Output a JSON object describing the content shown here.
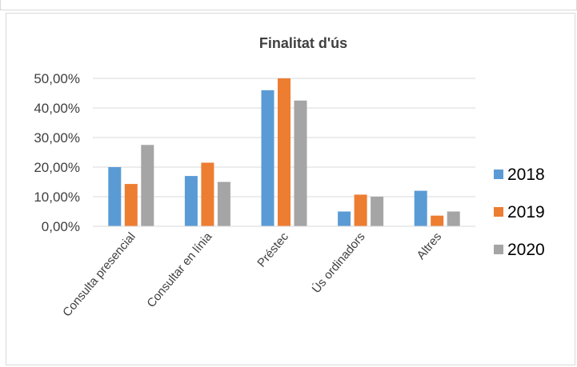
{
  "chart_data": {
    "type": "bar",
    "title": "Finalitat d'ús",
    "xlabel": "",
    "ylabel": "",
    "categories": [
      "Consulta presencial",
      "Consultar en línia",
      "Préstec",
      "Ús ordinadors",
      "Altres"
    ],
    "series": [
      {
        "name": "2018",
        "color": "#5b9bd5",
        "values": [
          20.0,
          17.0,
          46.0,
          5.0,
          12.0
        ]
      },
      {
        "name": "2019",
        "color": "#ed7d31",
        "values": [
          14.3,
          21.5,
          50.0,
          10.7,
          3.6
        ]
      },
      {
        "name": "2020",
        "color": "#a5a5a5",
        "values": [
          27.5,
          15.0,
          42.5,
          10.0,
          5.0
        ]
      }
    ],
    "ylim": [
      0,
      50
    ],
    "yticks": [
      "0,00%",
      "10,00%",
      "20,00%",
      "30,00%",
      "40,00%",
      "50,00%"
    ],
    "grid": true,
    "legend_position": "right"
  }
}
